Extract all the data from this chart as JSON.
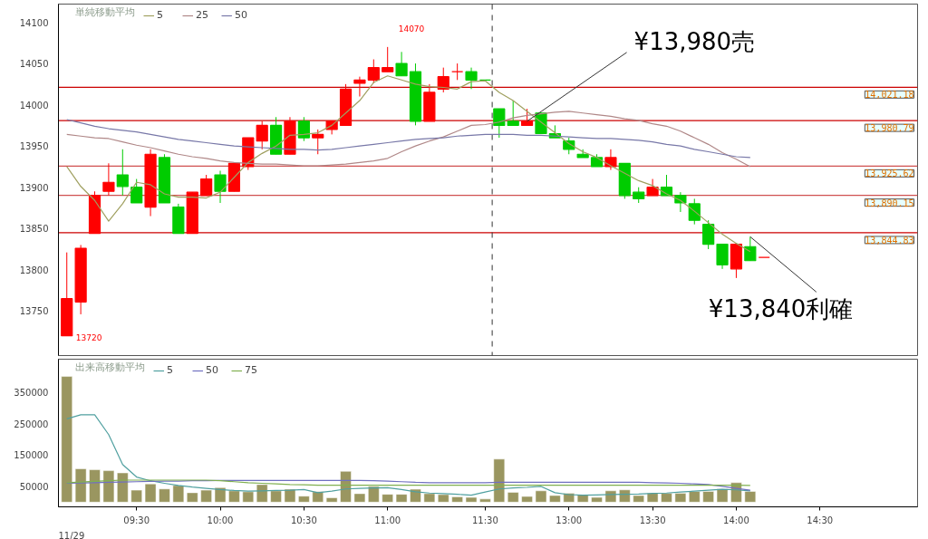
{
  "chart_data": [
    {
      "type": "candlestick",
      "legend_title": "単純移動平均",
      "legend": "top left",
      "tick_labels": "y",
      "categories": [
        null,
        null,
        null,
        null,
        null,
        null,
        null,
        null,
        null,
        null,
        null,
        null,
        null,
        null,
        null,
        null,
        null,
        null,
        null,
        null,
        null,
        null,
        null,
        null,
        null,
        null,
        null,
        null,
        null,
        null,
        null,
        null,
        null,
        null,
        null,
        null,
        null,
        null,
        null,
        null,
        null,
        null,
        null,
        null,
        null,
        null,
        null,
        null,
        null,
        null,
        null,
        null,
        null,
        null,
        null,
        null,
        null,
        null,
        null,
        null,
        null
      ],
      "ylim": [
        13696,
        14122
      ],
      "yticks": [
        13750,
        13800,
        13850,
        13900,
        13950,
        14000,
        14050,
        14100
      ],
      "ohlc": [
        [
          13720,
          13821,
          13720,
          13765
        ],
        [
          13761,
          13830,
          13746,
          13826
        ],
        [
          13844,
          13895,
          13844,
          13890
        ],
        [
          13895,
          13929,
          13890,
          13906
        ],
        [
          13915,
          13946,
          13890,
          13901
        ],
        [
          13900,
          13910,
          13881,
          13881
        ],
        [
          13876,
          13946,
          13865,
          13940
        ],
        [
          13936,
          13940,
          13881,
          13881
        ],
        [
          13876,
          13880,
          13844,
          13844
        ],
        [
          13844,
          13894,
          13844,
          13894
        ],
        [
          13890,
          13915,
          13890,
          13910
        ],
        [
          13915,
          13920,
          13881,
          13895
        ],
        [
          13895,
          13929,
          13895,
          13929
        ],
        [
          13925,
          13960,
          13921,
          13960
        ],
        [
          13956,
          13980,
          13946,
          13975
        ],
        [
          13975,
          13985,
          13940,
          13940
        ],
        [
          13940,
          13985,
          13940,
          13980
        ],
        [
          13980,
          13985,
          13956,
          13960
        ],
        [
          13960,
          13970,
          13940,
          13964
        ],
        [
          13970,
          13980,
          13964,
          13980
        ],
        [
          13975,
          14025,
          13975,
          14019
        ],
        [
          14026,
          14034,
          14010,
          14030
        ],
        [
          14030,
          14055,
          14026,
          14045
        ],
        [
          14040,
          14070,
          14040,
          14045
        ],
        [
          14050,
          14064,
          14035,
          14035
        ],
        [
          14040,
          14050,
          13975,
          13980
        ],
        [
          13980,
          14025,
          13980,
          14015
        ],
        [
          14019,
          14045,
          14015,
          14034
        ],
        [
          14040,
          14050,
          14030,
          14040
        ],
        [
          14040,
          14045,
          14019,
          14030
        ],
        [
          14030,
          14030,
          14030,
          14030
        ],
        [
          13995,
          13995,
          13960,
          13975
        ],
        [
          13980,
          14005,
          13975,
          13975
        ],
        [
          13975,
          13995,
          13975,
          13980
        ],
        [
          13990,
          13990,
          13965,
          13965
        ],
        [
          13965,
          13975,
          13960,
          13960
        ],
        [
          13956,
          13960,
          13940,
          13946
        ],
        [
          13940,
          13946,
          13936,
          13936
        ],
        [
          13936,
          13940,
          13925,
          13925
        ],
        [
          13925,
          13946,
          13921,
          13936
        ],
        [
          13929,
          13929,
          13886,
          13890
        ],
        [
          13894,
          13900,
          13881,
          13886
        ],
        [
          13890,
          13910,
          13890,
          13900
        ],
        [
          13900,
          13915,
          13890,
          13890
        ],
        [
          13890,
          13894,
          13870,
          13881
        ],
        [
          13880,
          13886,
          13855,
          13860
        ],
        [
          13855,
          13860,
          13825,
          13831
        ],
        [
          13831,
          13831,
          13801,
          13806
        ],
        [
          13801,
          13831,
          13790,
          13831
        ],
        [
          13828,
          13840,
          13811,
          13811
        ],
        [
          13815,
          13815,
          13815,
          13815
        ],
        null,
        null,
        null,
        null,
        null,
        null,
        null,
        null,
        null,
        null
      ],
      "colors": [
        "#ff0000",
        "#ff0000",
        "#ff0000",
        "#ff0000",
        "#00cc00",
        "#00cc00",
        "#ff0000",
        "#00cc00",
        "#00cc00",
        "#ff0000",
        "#ff0000",
        "#00cc00",
        "#ff0000",
        "#ff0000",
        "#ff0000",
        "#00cc00",
        "#ff0000",
        "#00cc00",
        "#ff0000",
        "#ff0000",
        "#ff0000",
        "#ff0000",
        "#ff0000",
        "#ff0000",
        "#00cc00",
        "#00cc00",
        "#ff0000",
        "#ff0000",
        "#ff0000",
        "#00cc00",
        "#00cc00",
        "#00cc00",
        "#00cc00",
        "#ff0000",
        "#00cc00",
        "#00cc00",
        "#00cc00",
        "#00cc00",
        "#00cc00",
        "#ff0000",
        "#00cc00",
        "#00cc00",
        "#ff0000",
        "#00cc00",
        "#00cc00",
        "#00cc00",
        "#00cc00",
        "#00cc00",
        "#ff0000",
        "#00cc00",
        "#ff0000",
        null,
        null,
        null,
        null,
        null,
        null,
        null,
        null,
        null,
        null
      ],
      "series": [
        {
          "type": "line",
          "name": "5",
          "color": "#a0a060",
          "values": [
            13925,
            13901,
            13884,
            13859,
            13880,
            13906,
            13903,
            13892,
            13888,
            13888,
            13887,
            13894,
            13912,
            13930,
            13941,
            13950,
            13963,
            13964,
            13966,
            13975,
            13990,
            14005,
            14027,
            14035,
            14030,
            14025,
            14022,
            14021,
            14019,
            14028,
            14029,
            14015,
            14005,
            13992,
            13979,
            13966,
            13953,
            13943,
            13936,
            13926,
            13917,
            13908,
            13902,
            13892,
            13884,
            13871,
            13857,
            13843,
            13832,
            13822,
            null,
            null,
            null,
            null,
            null,
            null,
            null,
            null,
            null,
            null,
            null
          ]
        },
        {
          "type": "line",
          "name": "25",
          "color": "#b08888",
          "values": [
            13964,
            13962,
            13960,
            13959,
            13955,
            13951,
            13948,
            13944,
            13940,
            13937,
            13935,
            13932,
            13930,
            13929,
            13928,
            13928,
            13927,
            13926,
            13926,
            13927,
            13928,
            13930,
            13932,
            13935,
            13943,
            13950,
            13956,
            13961,
            13968,
            13975,
            13976,
            13979,
            13984,
            13987,
            13989,
            13991,
            13992,
            13990,
            13988,
            13986,
            13983,
            13981,
            13977,
            13974,
            13968,
            13960,
            13952,
            13942,
            13934,
            13925,
            null,
            null,
            null,
            null,
            null,
            null,
            null,
            null,
            null,
            null,
            null
          ]
        },
        {
          "type": "line",
          "name": "50",
          "color": "#7878a8",
          "values": [
            13982,
            13978,
            13974,
            13971,
            13969,
            13967,
            13964,
            13961,
            13958,
            13956,
            13954,
            13952,
            13950,
            13949,
            13948,
            13947,
            13946,
            13946,
            13945,
            13946,
            13948,
            13950,
            13952,
            13954,
            13956,
            13958,
            13959,
            13960,
            13962,
            13963,
            13964,
            13964,
            13964,
            13963,
            13963,
            13962,
            13961,
            13960,
            13959,
            13959,
            13958,
            13957,
            13955,
            13952,
            13950,
            13946,
            13943,
            13940,
            13937,
            13936,
            null,
            null,
            null,
            null,
            null,
            null,
            null,
            null,
            null,
            null,
            null
          ]
        }
      ],
      "ref_lines": [
        {
          "axis": "y",
          "value": 14021.18,
          "label": "14,021.18",
          "color": "#cc0000"
        },
        {
          "axis": "y",
          "value": 13980.79,
          "label": "13,980.79",
          "color": "#cc0000"
        },
        {
          "axis": "y",
          "value": 13925.62,
          "label": "13,925.62",
          "color": "#d05050"
        },
        {
          "axis": "y",
          "value": 13890.15,
          "label": "13,890.15",
          "color": "#d05050"
        },
        {
          "axis": "y",
          "value": 13844.83,
          "label": "13,844.83",
          "color": "#cc0000"
        }
      ],
      "annotations": [
        "13720",
        "14070",
        {
          "text": "¥13,980売",
          "y": 13980
        },
        {
          "text": "¥13,840利確",
          "y": 13840
        }
      ]
    },
    {
      "type": "bar",
      "legend_title": "出来高移動平均",
      "legend": "top left",
      "categories": [
        null,
        null,
        null,
        null,
        null,
        "09:30",
        null,
        null,
        null,
        null,
        null,
        "10:00",
        null,
        null,
        null,
        null,
        null,
        "10:30",
        null,
        null,
        null,
        null,
        null,
        "11:00",
        null,
        null,
        null,
        null,
        null,
        null,
        "11:30",
        null,
        null,
        null,
        null,
        null,
        "13:00",
        null,
        null,
        null,
        null,
        null,
        "13:30",
        null,
        null,
        null,
        null,
        null,
        "14:00",
        null,
        null,
        null,
        null,
        null,
        "14:30",
        null,
        null,
        null,
        null,
        null,
        null
      ],
      "ylim": [
        -15000,
        455000
      ],
      "yticks": [
        50000,
        150000,
        250000,
        350000
      ],
      "series": [
        {
          "type": "bar",
          "color": "#9a9660",
          "values": [
            400000,
            106000,
            103000,
            100000,
            93000,
            38000,
            58000,
            42000,
            53000,
            30000,
            38000,
            46000,
            36000,
            33000,
            56000,
            36000,
            41000,
            19000,
            33000,
            14000,
            98000,
            27000,
            50000,
            25000,
            25000,
            41000,
            27000,
            24000,
            17000,
            15000,
            10000,
            137000,
            31000,
            18000,
            36000,
            21000,
            28000,
            23000,
            15000,
            36000,
            39000,
            21000,
            28000,
            28000,
            28000,
            34000,
            34000,
            42000,
            62000,
            34000,
            null,
            null,
            null,
            null,
            null,
            null,
            null,
            null,
            null,
            null,
            null
          ]
        },
        {
          "type": "line",
          "name": "5",
          "color": "#50a0a0",
          "values": [
            265000,
            278000,
            278000,
            215000,
            120000,
            80000,
            68000,
            60000,
            53000,
            48000,
            44000,
            40000,
            37000,
            35000,
            36000,
            37000,
            38000,
            40000,
            30000,
            35000,
            42000,
            44000,
            45000,
            46000,
            40000,
            33000,
            29000,
            27000,
            25000,
            22000,
            32000,
            42000,
            45000,
            47000,
            50000,
            30000,
            24000,
            22000,
            23000,
            24000,
            25000,
            26000,
            28000,
            29000,
            32000,
            35000,
            38000,
            41000,
            39000,
            36000,
            null,
            null,
            null,
            null,
            null,
            null,
            null,
            null,
            null,
            null,
            null
          ]
        },
        {
          "type": "line",
          "name": "50",
          "color": "#7070c0",
          "values": [
            60000,
            61000,
            62000,
            63000,
            64000,
            65000,
            66000,
            67000,
            67000,
            68000,
            68000,
            69000,
            69000,
            69000,
            69000,
            69000,
            69000,
            69000,
            69000,
            69000,
            69000,
            69000,
            68000,
            67000,
            65000,
            63000,
            62000,
            62000,
            62000,
            62000,
            62000,
            63000,
            63000,
            63000,
            63000,
            63000,
            63000,
            63000,
            63000,
            63000,
            63000,
            63000,
            62000,
            61000,
            60000,
            58000,
            56000,
            50000,
            44000,
            38000,
            null,
            null,
            null,
            null,
            null,
            null,
            null,
            null,
            null,
            null,
            null
          ]
        },
        {
          "type": "line",
          "name": "75",
          "color": "#80b050",
          "values": [
            62000,
            64000,
            66000,
            68000,
            70000,
            70000,
            70000,
            70000,
            70000,
            70000,
            70000,
            68000,
            65000,
            62000,
            60000,
            58000,
            56000,
            55000,
            54000,
            54000,
            54000,
            54000,
            54000,
            54000,
            54000,
            54000,
            54000,
            54000,
            54000,
            54000,
            54000,
            54000,
            54000,
            54000,
            54000,
            54000,
            54000,
            54000,
            54000,
            54000,
            54000,
            54000,
            54000,
            54000,
            54000,
            54000,
            54000,
            54000,
            54000,
            53000,
            null,
            null,
            null,
            null,
            null,
            null,
            null,
            null,
            null,
            null,
            null
          ]
        }
      ],
      "annotations": [
        "11/29"
      ]
    }
  ]
}
